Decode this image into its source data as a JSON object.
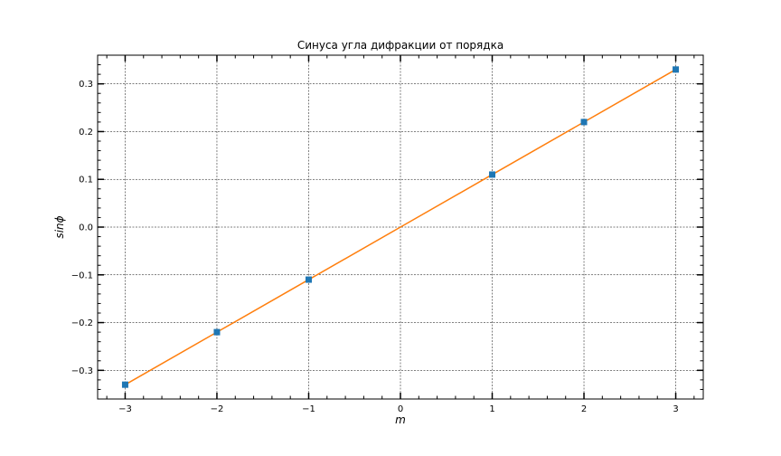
{
  "chart_data": {
    "type": "scatter",
    "title": "Синуса угла дифракции от порядка",
    "xlabel": "m",
    "ylabel": "sinϕ",
    "xlim": [
      -3.3,
      3.3
    ],
    "ylim": [
      -0.36,
      0.36
    ],
    "xticks": [
      -3,
      -2,
      -1,
      0,
      1,
      2,
      3
    ],
    "xtick_labels": [
      "−3",
      "−2",
      "−1",
      "0",
      "1",
      "2",
      "3"
    ],
    "yticks": [
      -0.3,
      -0.2,
      -0.1,
      0.0,
      0.1,
      0.2,
      0.3
    ],
    "ytick_labels": [
      "−0.3",
      "−0.2",
      "−0.1",
      "0.0",
      "0.1",
      "0.2",
      "0.3"
    ],
    "grid": true,
    "series": [
      {
        "kind": "markers",
        "marker": "square",
        "color": "#1f77b4",
        "x": [
          -3,
          -2,
          -1,
          1,
          2,
          3
        ],
        "y": [
          -0.33,
          -0.22,
          -0.11,
          0.11,
          0.22,
          0.33
        ]
      },
      {
        "kind": "line",
        "color": "#ff7f0e",
        "x": [
          -3,
          -2,
          -1,
          0,
          1,
          2,
          3
        ],
        "y": [
          -0.33,
          -0.22,
          -0.11,
          0.0,
          0.11,
          0.22,
          0.33
        ]
      }
    ]
  }
}
